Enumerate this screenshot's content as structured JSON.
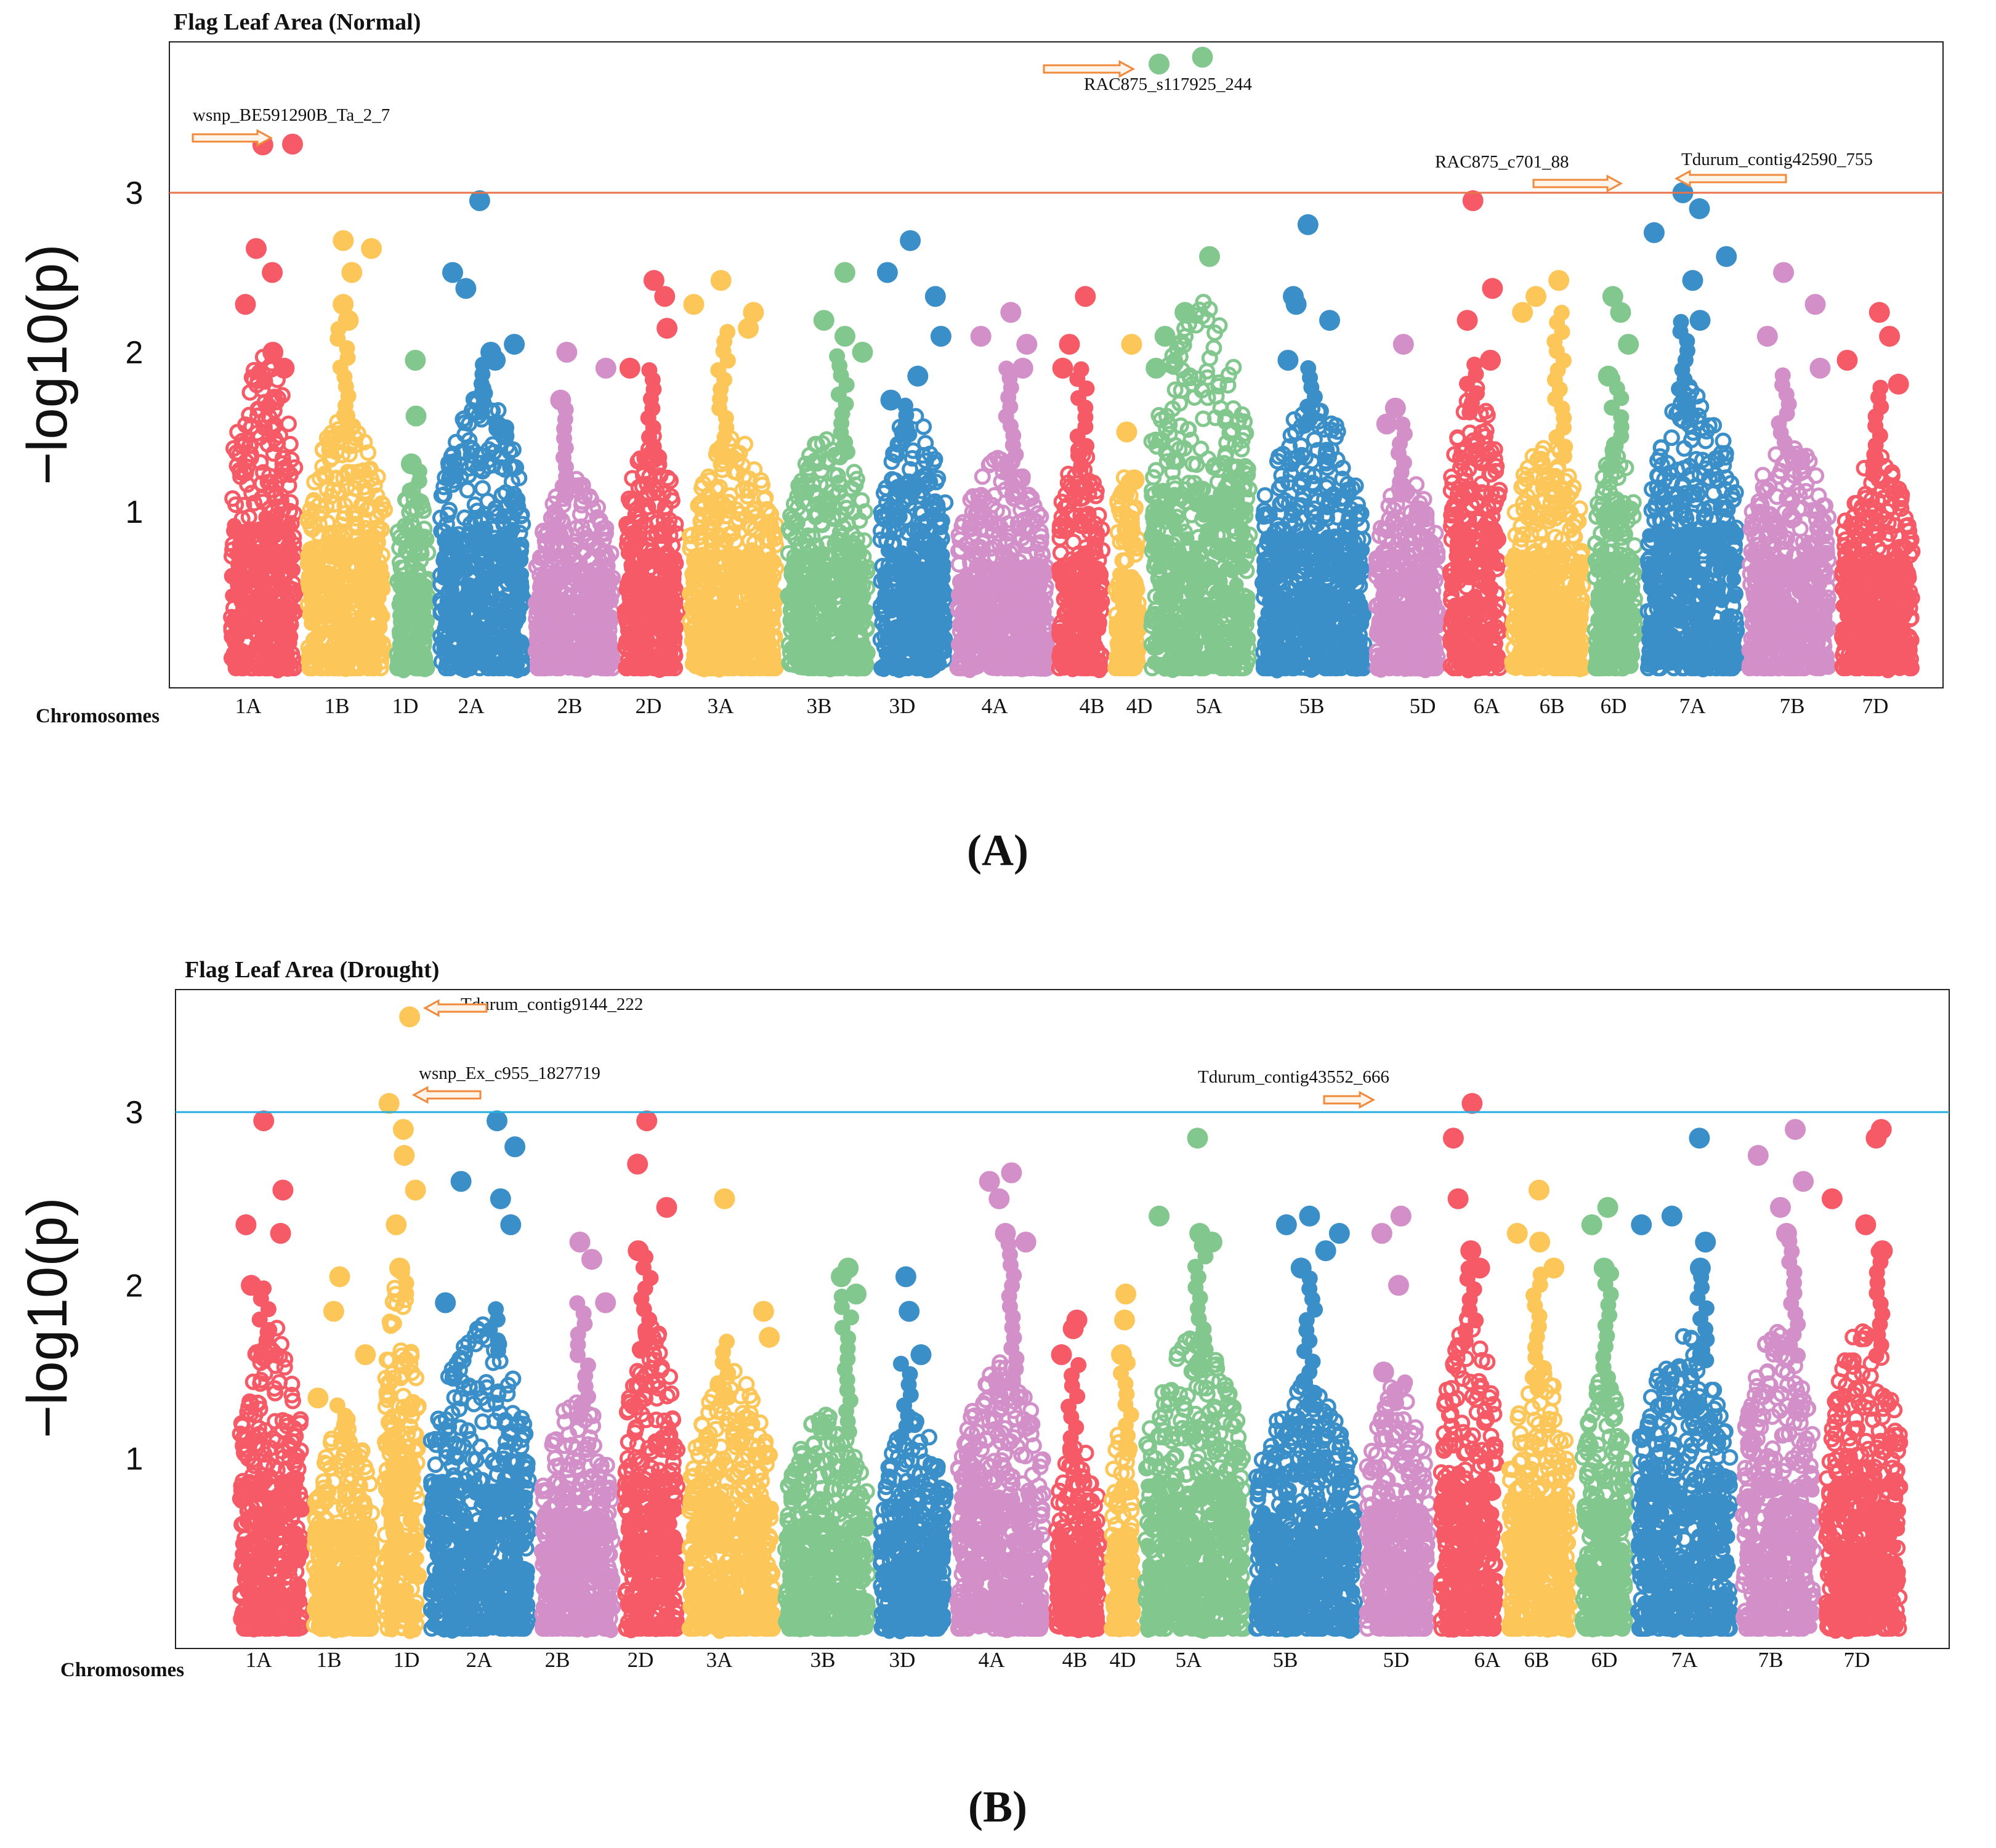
{
  "colors": {
    "red": "#f65a66",
    "yellow": "#fdc658",
    "green": "#82c88e",
    "blue": "#3b8fc8",
    "pink": "#d28fc8",
    "threshold_a": "#e8744c",
    "threshold_b": "#27aee0",
    "arrow": "#f08a3c"
  },
  "y_axis_label": "−log10(p)",
  "chart_data": [
    {
      "type": "scatter",
      "title": "Flag Leaf Area (Normal)",
      "panel_label": "(A)",
      "xlabel": "Chromosomes",
      "ylabel": "-log10(p)",
      "ylim": [
        0,
        3.85
      ],
      "yticks": [
        1,
        2,
        3
      ],
      "threshold": 3,
      "chromosomes": [
        {
          "name": "1A",
          "color": "red",
          "peak": 3.3,
          "top": [
            3.3,
            2.65,
            2.5,
            2.3,
            2.0,
            1.9
          ]
        },
        {
          "name": "1B",
          "color": "yellow",
          "peak": 2.7,
          "top": [
            2.7,
            2.65,
            2.5,
            2.3,
            2.2
          ]
        },
        {
          "name": "1D",
          "color": "green",
          "peak": 1.95,
          "top": [
            1.95,
            1.6,
            1.3
          ]
        },
        {
          "name": "2A",
          "color": "blue",
          "peak": 2.95,
          "top": [
            2.95,
            2.5,
            2.4,
            2.05,
            2.0,
            1.95
          ]
        },
        {
          "name": "2B",
          "color": "pink",
          "peak": 2.0,
          "top": [
            2.0,
            1.9,
            1.7
          ]
        },
        {
          "name": "2D",
          "color": "red",
          "peak": 2.45,
          "top": [
            2.45,
            2.35,
            2.15,
            1.9
          ]
        },
        {
          "name": "3A",
          "color": "yellow",
          "peak": 2.45,
          "top": [
            2.45,
            2.3,
            2.25,
            2.15
          ]
        },
        {
          "name": "3B",
          "color": "green",
          "peak": 2.5,
          "top": [
            2.5,
            2.2,
            2.1,
            2.0
          ]
        },
        {
          "name": "3D",
          "color": "blue",
          "peak": 2.7,
          "top": [
            2.7,
            2.5,
            2.35,
            2.1,
            1.85,
            1.7
          ]
        },
        {
          "name": "4A",
          "color": "pink",
          "peak": 2.25,
          "top": [
            2.25,
            2.1,
            2.05,
            1.9
          ]
        },
        {
          "name": "4B",
          "color": "red",
          "peak": 2.35,
          "top": [
            2.35,
            2.05,
            1.9
          ]
        },
        {
          "name": "4D",
          "color": "yellow",
          "peak": 2.05,
          "top": [
            2.05,
            1.5,
            1.2
          ]
        },
        {
          "name": "5A",
          "color": "green",
          "peak": 3.85,
          "top": [
            3.85,
            2.6,
            2.25,
            2.1,
            1.9
          ]
        },
        {
          "name": "5B",
          "color": "blue",
          "peak": 2.8,
          "top": [
            2.8,
            2.35,
            2.3,
            2.2,
            1.95
          ]
        },
        {
          "name": "5D",
          "color": "pink",
          "peak": 2.05,
          "top": [
            2.05,
            1.65,
            1.55
          ]
        },
        {
          "name": "6A",
          "color": "red",
          "peak": 2.95,
          "top": [
            2.95,
            2.4,
            2.2,
            1.95
          ]
        },
        {
          "name": "6B",
          "color": "yellow",
          "peak": 2.45,
          "top": [
            2.45,
            2.35,
            2.25
          ]
        },
        {
          "name": "6D",
          "color": "green",
          "peak": 2.35,
          "top": [
            2.35,
            2.25,
            2.05,
            1.85
          ]
        },
        {
          "name": "7A",
          "color": "blue",
          "peak": 3.0,
          "top": [
            3.0,
            2.9,
            2.75,
            2.6,
            2.45,
            2.2
          ]
        },
        {
          "name": "7B",
          "color": "pink",
          "peak": 2.5,
          "top": [
            2.5,
            2.3,
            2.1,
            1.9
          ]
        },
        {
          "name": "7D",
          "color": "red",
          "peak": 2.25,
          "top": [
            2.25,
            2.1,
            1.95,
            1.8
          ]
        }
      ],
      "annotations": [
        {
          "label": "wsnp_BE591290B_Ta_2_7",
          "chr": "1A",
          "value": 3.3
        },
        {
          "label": "RAC875_s117925_244",
          "chr": "5A",
          "value": 3.85
        },
        {
          "label": "RAC875_c701_88",
          "chr": "7A",
          "value": 3.0
        },
        {
          "label": "Tdurum_contig42590_755",
          "chr": "7A",
          "value": 3.0
        }
      ]
    },
    {
      "type": "scatter",
      "title": "Flag Leaf Area (Drought)",
      "panel_label": "(B)",
      "xlabel": "Chromosomes",
      "ylabel": "-log10(p)",
      "ylim": [
        0,
        3.6
      ],
      "yticks": [
        1,
        2,
        3
      ],
      "threshold": 3,
      "chromosomes": [
        {
          "name": "1A",
          "color": "red",
          "peak": 2.95,
          "top": [
            2.95,
            2.55,
            2.35,
            2.3,
            2.0
          ]
        },
        {
          "name": "1B",
          "color": "yellow",
          "peak": 2.05,
          "top": [
            2.05,
            1.85,
            1.6,
            1.35
          ]
        },
        {
          "name": "1D",
          "color": "yellow",
          "peak": 3.55,
          "top": [
            3.55,
            3.05,
            2.9,
            2.75,
            2.55,
            2.35,
            2.1
          ]
        },
        {
          "name": "2A",
          "color": "blue",
          "peak": 2.95,
          "top": [
            2.95,
            2.8,
            2.6,
            2.5,
            2.35,
            1.9
          ]
        },
        {
          "name": "2B",
          "color": "pink",
          "peak": 2.25,
          "top": [
            2.25,
            2.15,
            1.9
          ]
        },
        {
          "name": "2D",
          "color": "red",
          "peak": 2.95,
          "top": [
            2.95,
            2.7,
            2.45,
            2.2
          ]
        },
        {
          "name": "3A",
          "color": "yellow",
          "peak": 2.5,
          "top": [
            2.5,
            1.85,
            1.7
          ]
        },
        {
          "name": "3B",
          "color": "green",
          "peak": 2.1,
          "top": [
            2.1,
            2.05,
            1.95
          ]
        },
        {
          "name": "3D",
          "color": "blue",
          "peak": 2.05,
          "top": [
            2.05,
            1.85,
            1.6
          ]
        },
        {
          "name": "4A",
          "color": "pink",
          "peak": 2.65,
          "top": [
            2.65,
            2.6,
            2.5,
            2.3,
            2.25
          ]
        },
        {
          "name": "4B",
          "color": "red",
          "peak": 1.8,
          "top": [
            1.8,
            1.75,
            1.6
          ]
        },
        {
          "name": "4D",
          "color": "yellow",
          "peak": 1.95,
          "top": [
            1.95,
            1.8,
            1.6
          ]
        },
        {
          "name": "5A",
          "color": "green",
          "peak": 2.85,
          "top": [
            2.85,
            2.4,
            2.3,
            2.25
          ]
        },
        {
          "name": "5B",
          "color": "blue",
          "peak": 2.4,
          "top": [
            2.4,
            2.35,
            2.3,
            2.2,
            2.1
          ]
        },
        {
          "name": "5D",
          "color": "pink",
          "peak": 2.4,
          "top": [
            2.4,
            2.3,
            2.0,
            1.5
          ]
        },
        {
          "name": "6A",
          "color": "red",
          "peak": 3.05,
          "top": [
            3.05,
            2.85,
            2.5,
            2.2,
            2.1
          ]
        },
        {
          "name": "6B",
          "color": "yellow",
          "peak": 2.55,
          "top": [
            2.55,
            2.3,
            2.25,
            2.1
          ]
        },
        {
          "name": "6D",
          "color": "green",
          "peak": 2.45,
          "top": [
            2.45,
            2.35,
            2.1
          ]
        },
        {
          "name": "7A",
          "color": "blue",
          "peak": 2.85,
          "top": [
            2.85,
            2.4,
            2.35,
            2.25,
            2.1
          ]
        },
        {
          "name": "7B",
          "color": "pink",
          "peak": 2.9,
          "top": [
            2.9,
            2.75,
            2.6,
            2.45,
            2.3
          ]
        },
        {
          "name": "7D",
          "color": "red",
          "peak": 2.9,
          "top": [
            2.9,
            2.85,
            2.5,
            2.35,
            2.2
          ]
        }
      ],
      "annotations": [
        {
          "label": "Tdurum_contig9144_222",
          "chr": "1D",
          "value": 3.55
        },
        {
          "label": "wsnp_Ex_c955_1827719",
          "chr": "1D",
          "value": 3.05
        },
        {
          "label": "Tdurum_contig43552_666",
          "chr": "6A",
          "value": 3.05
        }
      ]
    }
  ]
}
